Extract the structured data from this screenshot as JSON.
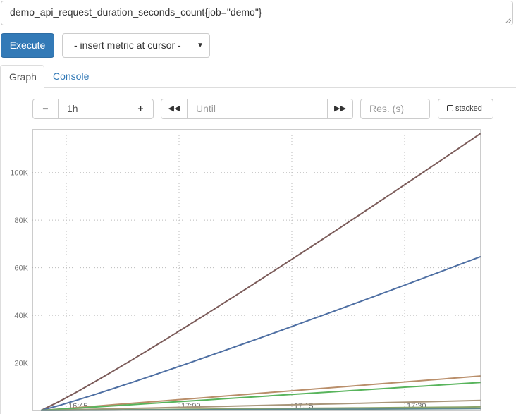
{
  "query": {
    "expression": "demo_api_request_duration_seconds_count{job=\"demo\"}"
  },
  "toolbar": {
    "execute_label": "Execute",
    "metric_select_label": "- insert metric at cursor -"
  },
  "tabs": [
    {
      "label": "Graph",
      "active": true
    },
    {
      "label": "Console",
      "active": false
    }
  ],
  "graph_controls": {
    "range_value": "1h",
    "minus_label": "−",
    "plus_label": "+",
    "until_placeholder": "Until",
    "resolution_placeholder": "Res. (s)",
    "stacked_label": "stacked"
  },
  "chart_data": {
    "type": "line",
    "x_ticks": [
      "16:45",
      "17:00",
      "17:15",
      "17:30"
    ],
    "y_ticks": [
      "20K",
      "40K",
      "60K",
      "80K",
      "100K"
    ],
    "ylim": [
      0,
      118000
    ],
    "grid": true,
    "series": [
      {
        "color": "#7b5b59",
        "values": [
          0,
          116500
        ]
      },
      {
        "color": "#4e6fa3",
        "values": [
          0,
          64700
        ]
      },
      {
        "color": "#b98e6a",
        "values": [
          0,
          14500
        ]
      },
      {
        "color": "#58b45c",
        "values": [
          0,
          11800
        ]
      },
      {
        "color": "#a9967a",
        "values": [
          0,
          4200
        ]
      },
      {
        "color": "#8aa46b",
        "values": [
          0,
          1500
        ]
      },
      {
        "color": "#5f8a8c",
        "values": [
          0,
          800
        ]
      }
    ]
  }
}
